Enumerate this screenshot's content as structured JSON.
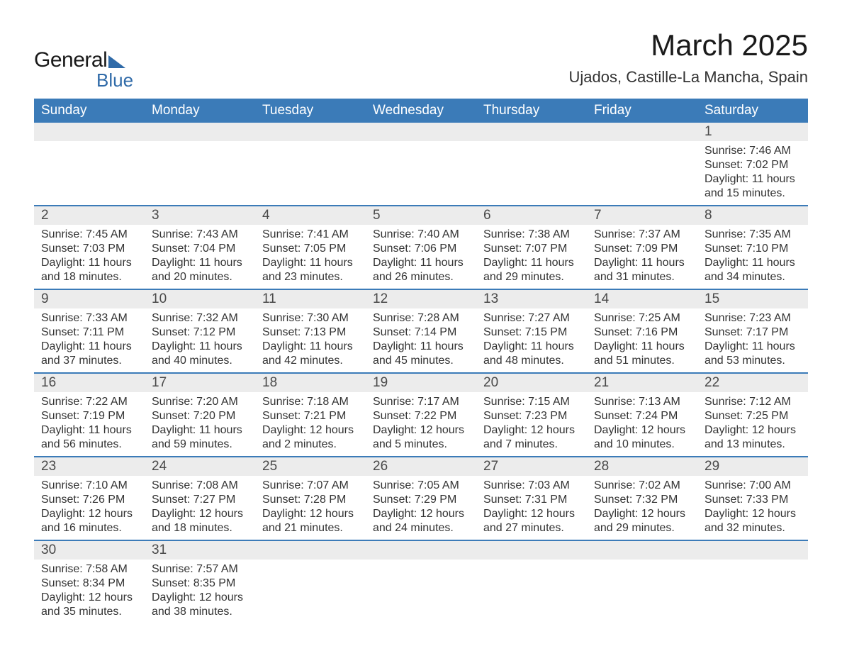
{
  "brand": {
    "part1": "General",
    "part2": "Blue",
    "primary_color": "#2f6aa8"
  },
  "title": "March 2025",
  "subtitle": "Ujados, Castille-La Mancha, Spain",
  "calendar": {
    "header_bg": "#3b7bb8",
    "header_fg": "#ffffff",
    "daynum_bg": "#ececec",
    "row_border": "#3b7bb8",
    "text_color": "#333333",
    "cell_fontsize": 16,
    "weekdays": [
      "Sunday",
      "Monday",
      "Tuesday",
      "Wednesday",
      "Thursday",
      "Friday",
      "Saturday"
    ],
    "labels": {
      "sunrise": "Sunrise: ",
      "sunset": "Sunset: ",
      "daylight": "Daylight: "
    },
    "weeks": [
      [
        null,
        null,
        null,
        null,
        null,
        null,
        {
          "n": "1",
          "sunrise": "7:46 AM",
          "sunset": "7:02 PM",
          "daylight1": "11 hours",
          "daylight2": "and 15 minutes."
        }
      ],
      [
        {
          "n": "2",
          "sunrise": "7:45 AM",
          "sunset": "7:03 PM",
          "daylight1": "11 hours",
          "daylight2": "and 18 minutes."
        },
        {
          "n": "3",
          "sunrise": "7:43 AM",
          "sunset": "7:04 PM",
          "daylight1": "11 hours",
          "daylight2": "and 20 minutes."
        },
        {
          "n": "4",
          "sunrise": "7:41 AM",
          "sunset": "7:05 PM",
          "daylight1": "11 hours",
          "daylight2": "and 23 minutes."
        },
        {
          "n": "5",
          "sunrise": "7:40 AM",
          "sunset": "7:06 PM",
          "daylight1": "11 hours",
          "daylight2": "and 26 minutes."
        },
        {
          "n": "6",
          "sunrise": "7:38 AM",
          "sunset": "7:07 PM",
          "daylight1": "11 hours",
          "daylight2": "and 29 minutes."
        },
        {
          "n": "7",
          "sunrise": "7:37 AM",
          "sunset": "7:09 PM",
          "daylight1": "11 hours",
          "daylight2": "and 31 minutes."
        },
        {
          "n": "8",
          "sunrise": "7:35 AM",
          "sunset": "7:10 PM",
          "daylight1": "11 hours",
          "daylight2": "and 34 minutes."
        }
      ],
      [
        {
          "n": "9",
          "sunrise": "7:33 AM",
          "sunset": "7:11 PM",
          "daylight1": "11 hours",
          "daylight2": "and 37 minutes."
        },
        {
          "n": "10",
          "sunrise": "7:32 AM",
          "sunset": "7:12 PM",
          "daylight1": "11 hours",
          "daylight2": "and 40 minutes."
        },
        {
          "n": "11",
          "sunrise": "7:30 AM",
          "sunset": "7:13 PM",
          "daylight1": "11 hours",
          "daylight2": "and 42 minutes."
        },
        {
          "n": "12",
          "sunrise": "7:28 AM",
          "sunset": "7:14 PM",
          "daylight1": "11 hours",
          "daylight2": "and 45 minutes."
        },
        {
          "n": "13",
          "sunrise": "7:27 AM",
          "sunset": "7:15 PM",
          "daylight1": "11 hours",
          "daylight2": "and 48 minutes."
        },
        {
          "n": "14",
          "sunrise": "7:25 AM",
          "sunset": "7:16 PM",
          "daylight1": "11 hours",
          "daylight2": "and 51 minutes."
        },
        {
          "n": "15",
          "sunrise": "7:23 AM",
          "sunset": "7:17 PM",
          "daylight1": "11 hours",
          "daylight2": "and 53 minutes."
        }
      ],
      [
        {
          "n": "16",
          "sunrise": "7:22 AM",
          "sunset": "7:19 PM",
          "daylight1": "11 hours",
          "daylight2": "and 56 minutes."
        },
        {
          "n": "17",
          "sunrise": "7:20 AM",
          "sunset": "7:20 PM",
          "daylight1": "11 hours",
          "daylight2": "and 59 minutes."
        },
        {
          "n": "18",
          "sunrise": "7:18 AM",
          "sunset": "7:21 PM",
          "daylight1": "12 hours",
          "daylight2": "and 2 minutes."
        },
        {
          "n": "19",
          "sunrise": "7:17 AM",
          "sunset": "7:22 PM",
          "daylight1": "12 hours",
          "daylight2": "and 5 minutes."
        },
        {
          "n": "20",
          "sunrise": "7:15 AM",
          "sunset": "7:23 PM",
          "daylight1": "12 hours",
          "daylight2": "and 7 minutes."
        },
        {
          "n": "21",
          "sunrise": "7:13 AM",
          "sunset": "7:24 PM",
          "daylight1": "12 hours",
          "daylight2": "and 10 minutes."
        },
        {
          "n": "22",
          "sunrise": "7:12 AM",
          "sunset": "7:25 PM",
          "daylight1": "12 hours",
          "daylight2": "and 13 minutes."
        }
      ],
      [
        {
          "n": "23",
          "sunrise": "7:10 AM",
          "sunset": "7:26 PM",
          "daylight1": "12 hours",
          "daylight2": "and 16 minutes."
        },
        {
          "n": "24",
          "sunrise": "7:08 AM",
          "sunset": "7:27 PM",
          "daylight1": "12 hours",
          "daylight2": "and 18 minutes."
        },
        {
          "n": "25",
          "sunrise": "7:07 AM",
          "sunset": "7:28 PM",
          "daylight1": "12 hours",
          "daylight2": "and 21 minutes."
        },
        {
          "n": "26",
          "sunrise": "7:05 AM",
          "sunset": "7:29 PM",
          "daylight1": "12 hours",
          "daylight2": "and 24 minutes."
        },
        {
          "n": "27",
          "sunrise": "7:03 AM",
          "sunset": "7:31 PM",
          "daylight1": "12 hours",
          "daylight2": "and 27 minutes."
        },
        {
          "n": "28",
          "sunrise": "7:02 AM",
          "sunset": "7:32 PM",
          "daylight1": "12 hours",
          "daylight2": "and 29 minutes."
        },
        {
          "n": "29",
          "sunrise": "7:00 AM",
          "sunset": "7:33 PM",
          "daylight1": "12 hours",
          "daylight2": "and 32 minutes."
        }
      ],
      [
        {
          "n": "30",
          "sunrise": "7:58 AM",
          "sunset": "8:34 PM",
          "daylight1": "12 hours",
          "daylight2": "and 35 minutes."
        },
        {
          "n": "31",
          "sunrise": "7:57 AM",
          "sunset": "8:35 PM",
          "daylight1": "12 hours",
          "daylight2": "and 38 minutes."
        },
        null,
        null,
        null,
        null,
        null
      ]
    ]
  }
}
